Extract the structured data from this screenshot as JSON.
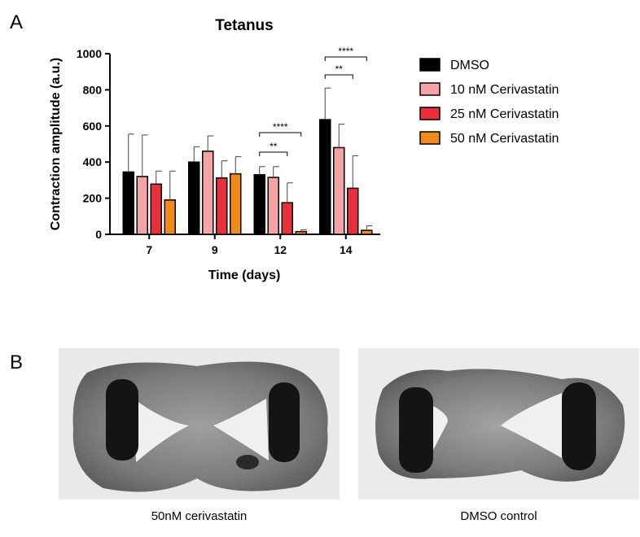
{
  "panels": {
    "a": "A",
    "b": "B"
  },
  "chart_data": {
    "type": "bar",
    "title": "Tetanus",
    "xlabel": "Time (days)",
    "ylabel": "Contraction amplitude (a.u.)",
    "ylim": [
      0,
      1000
    ],
    "yticks": [
      0,
      200,
      400,
      600,
      800,
      1000
    ],
    "categories": [
      "7",
      "9",
      "12",
      "14"
    ],
    "legend_position": "right",
    "series": [
      {
        "name": "DMSO",
        "color": "#000000",
        "values": [
          345,
          400,
          330,
          635
        ],
        "errors": [
          210,
          85,
          45,
          175
        ]
      },
      {
        "name": "10 nM Cerivastatin",
        "color": "#f4a3a8",
        "values": [
          320,
          460,
          315,
          480
        ],
        "errors": [
          230,
          85,
          60,
          130
        ]
      },
      {
        "name": "25 nM Cerivastatin",
        "color": "#e8303a",
        "values": [
          278,
          312,
          175,
          255
        ],
        "errors": [
          72,
          95,
          110,
          180
        ]
      },
      {
        "name": "50 nM Cerivastatin",
        "color": "#f28a18",
        "values": [
          190,
          335,
          15,
          22
        ],
        "errors": [
          160,
          95,
          10,
          25
        ]
      }
    ],
    "significance": [
      {
        "category": "12",
        "from_series": 0,
        "to_series": 2,
        "label": "**"
      },
      {
        "category": "12",
        "from_series": 0,
        "to_series": 3,
        "label": "****"
      },
      {
        "category": "14",
        "from_series": 0,
        "to_series": 2,
        "label": "**"
      },
      {
        "category": "14",
        "from_series": 0,
        "to_series": 3,
        "label": "****"
      }
    ]
  },
  "images": {
    "left_caption": "50nM cerivastatin",
    "right_caption": "DMSO control"
  }
}
